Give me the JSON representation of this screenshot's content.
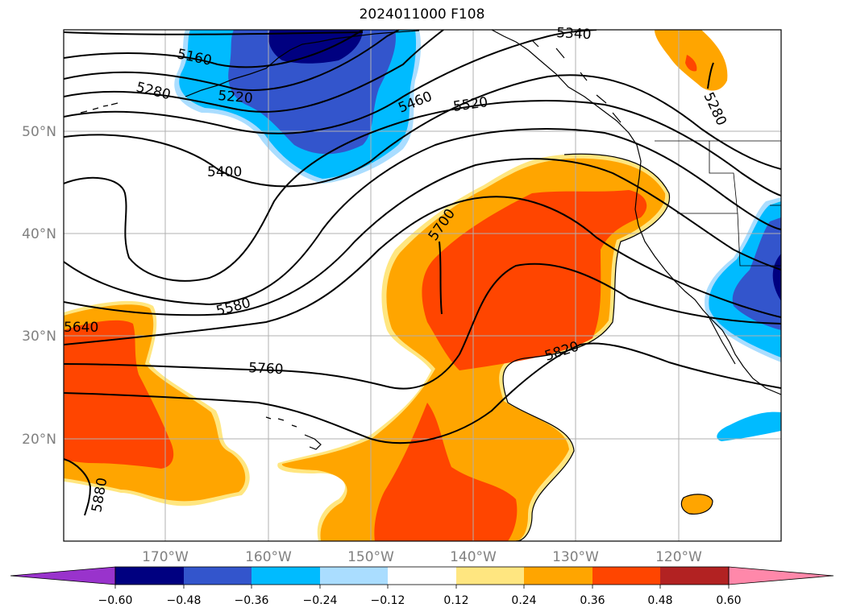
{
  "title": "2024011000 F108",
  "latitude_labels": [
    "50°N",
    "40°N",
    "30°N",
    "20°N"
  ],
  "longitude_labels": [
    "170°W",
    "160°W",
    "150°W",
    "140°W",
    "130°W",
    "120°W"
  ],
  "contour_labels": [
    "5160",
    "5220",
    "5280",
    "5340",
    "5400",
    "5460",
    "5520",
    "5580",
    "5640",
    "5700",
    "5760",
    "5820",
    "5880",
    "5280"
  ],
  "colorbar": {
    "tick_labels": [
      "−0.60",
      "−0.48",
      "−0.36",
      "−0.24",
      "−0.12",
      "0.12",
      "0.24",
      "0.36",
      "0.48",
      "0.60"
    ],
    "colors": [
      "#9933cc",
      "#000080",
      "#3355cc",
      "#00bbff",
      "#aaddff",
      "#ffffff",
      "#ffe680",
      "#ffa500",
      "#ff4500",
      "#b22222",
      "#ff88aa"
    ]
  },
  "shading_colors": {
    "light_yellow": "#ffe680",
    "orange": "#ffa500",
    "red_orange": "#ff4500",
    "red": "#b22222",
    "light_blue": "#aaddff",
    "cyan": "#00bbff",
    "blue": "#3355cc",
    "navy": "#000080"
  }
}
